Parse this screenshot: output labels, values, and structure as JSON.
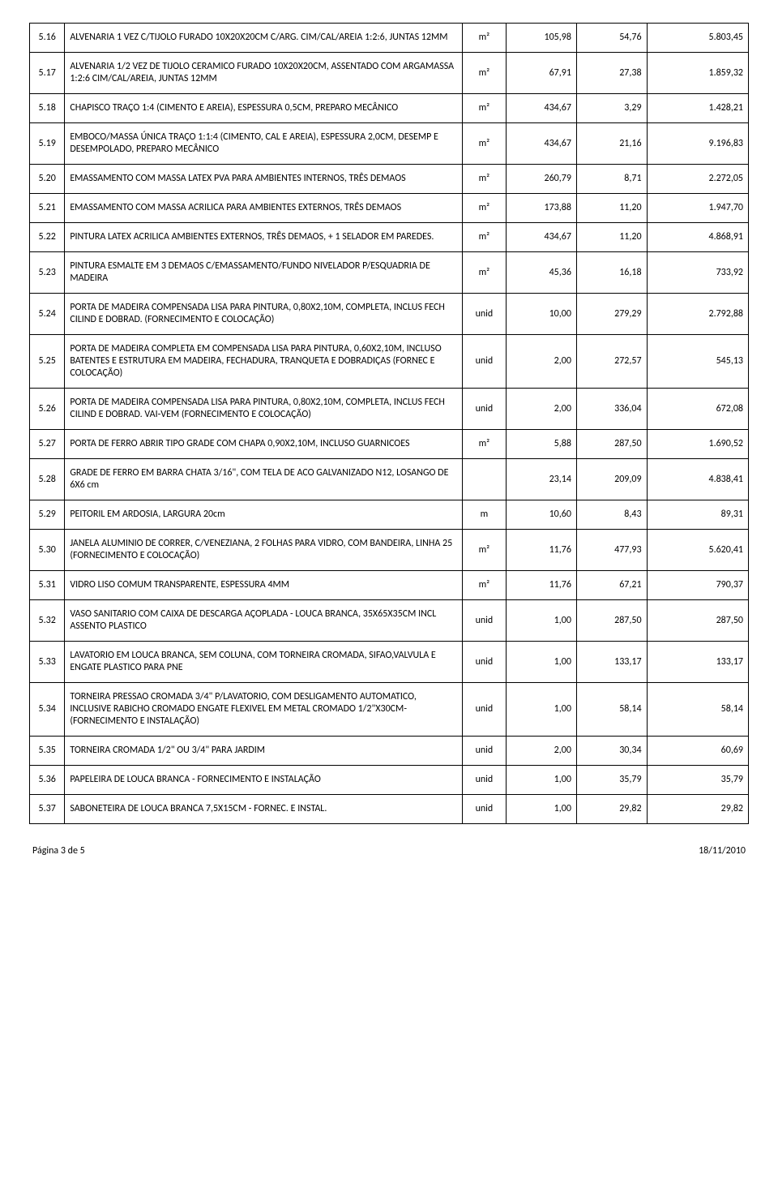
{
  "footer": {
    "page_label": "Página 3 de 5",
    "date": "18/11/2010"
  },
  "table": {
    "columns": [
      "id",
      "desc",
      "unit",
      "qty",
      "price",
      "total"
    ],
    "col_align": [
      "center",
      "left",
      "center",
      "right",
      "right",
      "right"
    ],
    "rows": [
      {
        "id": "5.16",
        "desc": "ALVENARIA 1 VEZ C/TIJOLO FURADO 10X20X20CM C/ARG. CIM/CAL/AREIA 1:2:6, JUNTAS 12MM",
        "unit": "m²",
        "qty": "105,98",
        "price": "54,76",
        "total": "5.803,45"
      },
      {
        "id": "5.17",
        "desc": "ALVENARIA 1/2 VEZ DE TIJOLO CERAMICO FURADO 10X20X20CM, ASSENTADO COM ARGAMASSA 1:2:6 CIM/CAL/AREIA, JUNTAS 12MM",
        "unit": "m²",
        "qty": "67,91",
        "price": "27,38",
        "total": "1.859,32"
      },
      {
        "id": "5.18",
        "desc": "CHAPISCO TRAÇO 1:4 (CIMENTO E AREIA), ESPESSURA 0,5CM, PREPARO MECÂNICO",
        "unit": "m²",
        "qty": "434,67",
        "price": "3,29",
        "total": "1.428,21"
      },
      {
        "id": "5.19",
        "desc": "EMBOCO/MASSA ÚNICA TRAÇO 1:1:4 (CIMENTO, CAL E AREIA), ESPESSURA 2,0CM, DESEMP E DESEMPOLADO, PREPARO MECÂNICO",
        "unit": "m²",
        "qty": "434,67",
        "price": "21,16",
        "total": "9.196,83"
      },
      {
        "id": "5.20",
        "desc": "EMASSAMENTO COM MASSA LATEX PVA PARA AMBIENTES INTERNOS, TRÊS DEMAOS",
        "unit": "m²",
        "qty": "260,79",
        "price": "8,71",
        "total": "2.272,05"
      },
      {
        "id": "5.21",
        "desc": "EMASSAMENTO COM MASSA ACRILICA PARA AMBIENTES EXTERNOS, TRÊS DEMAOS",
        "unit": "m²",
        "qty": "173,88",
        "price": "11,20",
        "total": "1.947,70"
      },
      {
        "id": "5.22",
        "desc": "PINTURA LATEX ACRILICA AMBIENTES EXTERNOS, TRÊS DEMAOS, + 1 SELADOR EM PAREDES.",
        "unit": "m²",
        "qty": "434,67",
        "price": "11,20",
        "total": "4.868,91"
      },
      {
        "id": "5.23",
        "desc": "PINTURA ESMALTE EM 3 DEMAOS C/EMASSAMENTO/FUNDO NIVELADOR P/ESQUADRIA DE MADEIRA",
        "unit": "m²",
        "qty": "45,36",
        "price": "16,18",
        "total": "733,92"
      },
      {
        "id": "5.24",
        "desc": "PORTA DE MADEIRA COMPENSADA LISA PARA PINTURA, 0,80X2,10M, COMPLETA, INCLUS FECH CILIND E DOBRAD. (FORNECIMENTO E COLOCAÇÃO)",
        "unit": "unid",
        "qty": "10,00",
        "price": "279,29",
        "total": "2.792,88"
      },
      {
        "id": "5.25",
        "desc": " PORTA DE MADEIRA COMPLETA EM COMPENSADA LISA PARA PINTURA, 0,60X2,10M, INCLUSO BATENTES E ESTRUTURA EM MADEIRA, FECHADURA, TRANQUETA E DOBRADIÇAS (FORNEC E COLOCAÇÃO)",
        "unit": "unid",
        "qty": "2,00",
        "price": "272,57",
        "total": "545,13"
      },
      {
        "id": "5.26",
        "desc": "PORTA DE MADEIRA COMPENSADA LISA PARA PINTURA, 0,80X2,10M, COMPLETA, INCLUS FECH CILIND E DOBRAD. VAI-VEM (FORNECIMENTO E COLOCAÇÃO)",
        "unit": "unid",
        "qty": "2,00",
        "price": "336,04",
        "total": "672,08"
      },
      {
        "id": "5.27",
        "desc": "PORTA DE FERRO ABRIR TIPO GRADE COM CHAPA 0,90X2,10M, INCLUSO GUARNICOES",
        "unit": "m²",
        "qty": "5,88",
        "price": "287,50",
        "total": "1.690,52"
      },
      {
        "id": "5.28",
        "desc": "GRADE DE FERRO EM BARRA CHATA 3/16\", COM TELA DE ACO GALVANIZADO N12, LOSANGO DE 6X6 cm",
        "unit": "",
        "qty": "23,14",
        "price": "209,09",
        "total": "4.838,41"
      },
      {
        "id": "5.29",
        "desc": "PEITORIL EM ARDOSIA, LARGURA 20cm",
        "unit": "m",
        "qty": "10,60",
        "price": "8,43",
        "total": "89,31"
      },
      {
        "id": "5.30",
        "desc": " JANELA ALUMINIO DE CORRER, C/VENEZIANA, 2 FOLHAS PARA VIDRO, COM BANDEIRA, LINHA 25 (FORNECIMENTO E COLOCAÇÃO)",
        "unit": "m²",
        "qty": "11,76",
        "price": "477,93",
        "total": "5.620,41"
      },
      {
        "id": "5.31",
        "desc": "VIDRO LISO COMUM TRANSPARENTE, ESPESSURA 4MM",
        "unit": "m²",
        "qty": "11,76",
        "price": "67,21",
        "total": "790,37"
      },
      {
        "id": "5.32",
        "desc": " VASO SANITARIO COM CAIXA DE DESCARGA AÇOPLADA - LOUCA BRANCA, 35X65X35CM INCL ASSENTO PLASTICO",
        "unit": "unid",
        "qty": "1,00",
        "price": "287,50",
        "total": "287,50"
      },
      {
        "id": "5.33",
        "desc": "LAVATORIO EM LOUCA BRANCA, SEM COLUNA, COM TORNEIRA CROMADA, SIFAO,VALVULA E ENGATE PLASTICO PARA PNE",
        "unit": "unid",
        "qty": "1,00",
        "price": "133,17",
        "total": "133,17"
      },
      {
        "id": "5.34",
        "desc": "TORNEIRA PRESSAO CROMADA 3/4\" P/LAVATORIO, COM DESLIGAMENTO AUTOMATICO,  INCLUSIVE RABICHO CROMADO ENGATE FLEXIVEL EM METAL CROMADO 1/2\"X30CM- (FORNECIMENTO E INSTALAÇÃO)",
        "unit": "unid",
        "qty": "1,00",
        "price": "58,14",
        "total": "58,14"
      },
      {
        "id": "5.35",
        "desc": "TORNEIRA CROMADA 1/2\" OU 3/4\" PARA JARDIM",
        "unit": "unid",
        "qty": "2,00",
        "price": "30,34",
        "total": "60,69"
      },
      {
        "id": "5.36",
        "desc": " PAPELEIRA DE LOUCA BRANCA - FORNECIMENTO E INSTALAÇÃO",
        "unit": "unid",
        "qty": "1,00",
        "price": "35,79",
        "total": "35,79"
      },
      {
        "id": "5.37",
        "desc": "SABONETEIRA DE LOUCA BRANCA 7,5X15CM - FORNEC. E INSTAL.",
        "unit": "unid",
        "qty": "1,00",
        "price": "29,82",
        "total": "29,82"
      }
    ]
  }
}
